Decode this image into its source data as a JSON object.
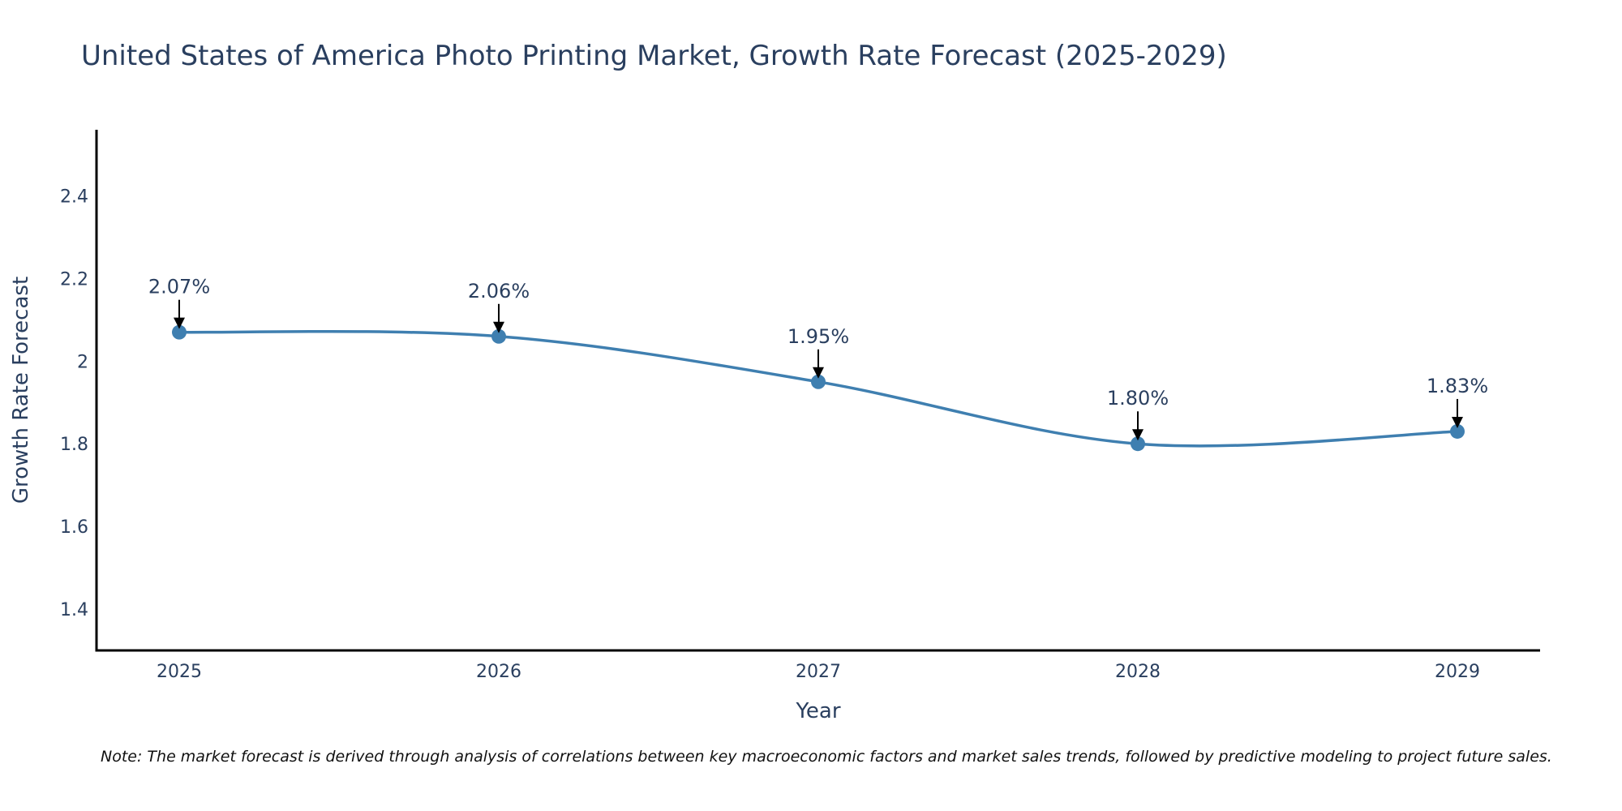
{
  "colors": {
    "line": "#3f7fb0",
    "marker": "#3f7fb0",
    "axis": "#000000",
    "text": "#2a3f5f",
    "arrow": "#000000"
  },
  "chart_data": {
    "type": "line",
    "title": "United States of America Photo Printing Market, Growth Rate Forecast (2025-2029)",
    "xlabel": "Year",
    "ylabel": "Growth Rate Forecast",
    "categories": [
      "2025",
      "2026",
      "2027",
      "2028",
      "2029"
    ],
    "values": [
      2.07,
      2.06,
      1.95,
      1.8,
      1.83
    ],
    "data_labels": [
      "2.07%",
      "2.06%",
      "1.95%",
      "1.80%",
      "1.83%"
    ],
    "ylim": [
      1.3,
      2.56
    ],
    "yticks": [
      1.4,
      1.6,
      1.8,
      2.0,
      2.2,
      2.4
    ],
    "ytick_labels": [
      "1.4",
      "1.6",
      "1.8",
      "2",
      "2.2",
      "2.4"
    ],
    "line_shape": "spline",
    "grid": false,
    "legend": "none"
  },
  "note": "Note: The market forecast is derived through analysis of correlations between key macroeconomic factors and market sales trends, followed by predictive modeling to project future sales."
}
